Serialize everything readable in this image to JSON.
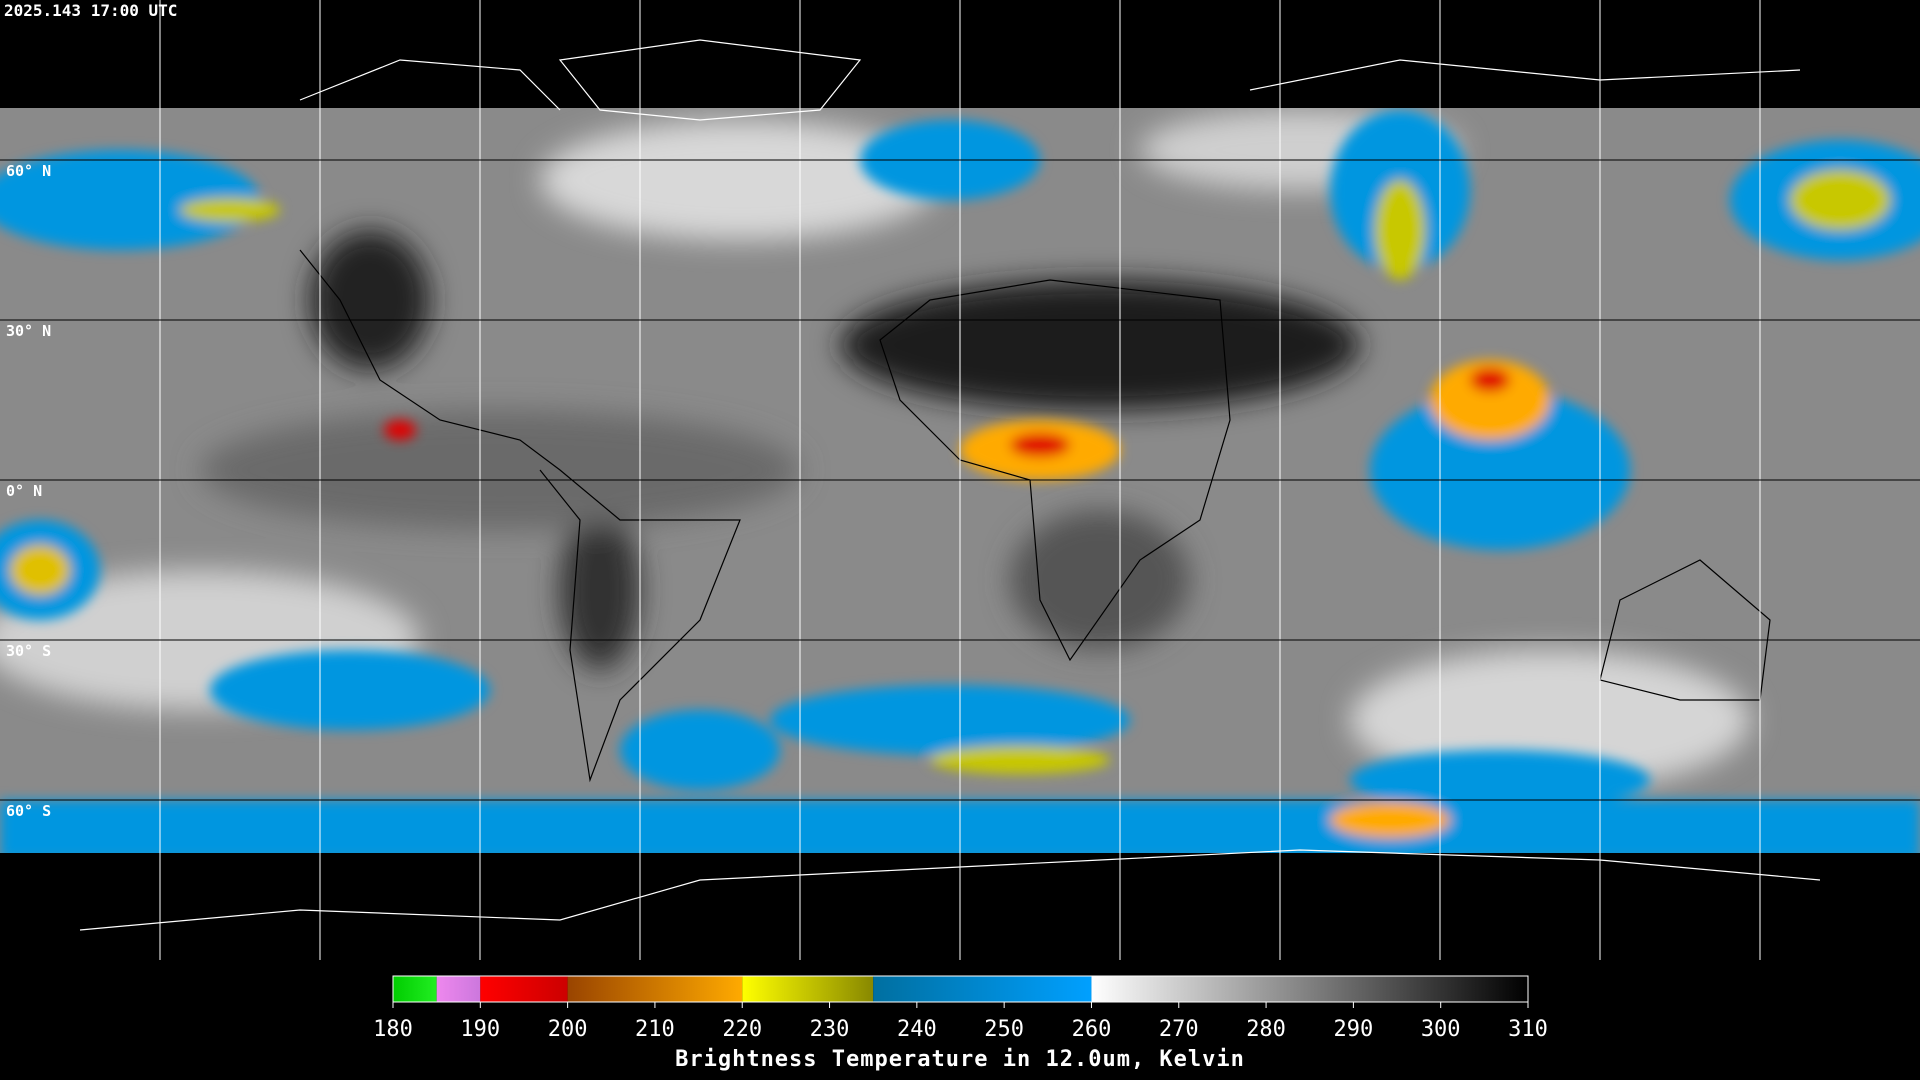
{
  "header": {
    "timestamp": "2025.143 17:00 UTC"
  },
  "map": {
    "lon_lines": [
      -150,
      -120,
      -90,
      -60,
      -30,
      0,
      30,
      60,
      90,
      120,
      150
    ],
    "lat_lines": [
      {
        "value": 60,
        "label": "60° N"
      },
      {
        "value": 30,
        "label": "30° N"
      },
      {
        "value": 0,
        "label": "0° N"
      },
      {
        "value": -30,
        "label": "30° S"
      },
      {
        "value": -60,
        "label": "60° S"
      }
    ]
  },
  "colorbar": {
    "range": [
      180,
      310
    ],
    "ticks": [
      180,
      190,
      200,
      210,
      220,
      230,
      240,
      250,
      260,
      270,
      280,
      290,
      300,
      310
    ],
    "segments": [
      {
        "from": 180,
        "to": 185,
        "colors": [
          "#00cc00",
          "#22ee22"
        ]
      },
      {
        "from": 185,
        "to": 190,
        "colors": [
          "#ee88ee",
          "#cc77dd"
        ]
      },
      {
        "from": 190,
        "to": 200,
        "colors": [
          "#ff0000",
          "#cc0000"
        ]
      },
      {
        "from": 200,
        "to": 220,
        "colors": [
          "#994400",
          "#ffaa00"
        ]
      },
      {
        "from": 220,
        "to": 235,
        "colors": [
          "#ffff00",
          "#888800"
        ]
      },
      {
        "from": 235,
        "to": 260,
        "colors": [
          "#006fa0",
          "#00a0ff"
        ]
      },
      {
        "from": 260,
        "to": 310,
        "colors": [
          "#ffffff",
          "#000000"
        ]
      }
    ],
    "title": "Brightness Temperature in 12.0um, Kelvin"
  }
}
